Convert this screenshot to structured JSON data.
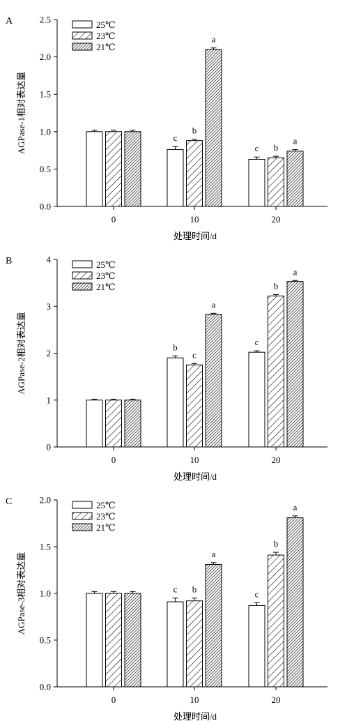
{
  "x_categories": [
    "0",
    "10",
    "20"
  ],
  "xlabel": "处理时间/d",
  "legend": [
    {
      "label": "25℃",
      "pattern": "white"
    },
    {
      "label": "23℃",
      "pattern": "sparse-hatch"
    },
    {
      "label": "21℃",
      "pattern": "dense-hatch"
    }
  ],
  "chart_data": [
    {
      "type": "bar",
      "panel_label": "A",
      "ylabel": "AGPase-1相对表达量",
      "ylim": [
        0,
        2.5
      ],
      "yticks": [
        "0.0",
        "0.5",
        "1.0",
        "1.5",
        "2.0",
        "2.5"
      ],
      "ytick_values": [
        0,
        0.5,
        1.0,
        1.5,
        2.0,
        2.5
      ],
      "categories": [
        "0",
        "10",
        "20"
      ],
      "legend_position": "top-left",
      "series": [
        {
          "name": "25℃",
          "values": [
            1.0,
            0.76,
            0.63
          ],
          "errors": [
            0.02,
            0.04,
            0.03
          ],
          "letters": [
            "",
            "c",
            "c"
          ]
        },
        {
          "name": "23℃",
          "values": [
            1.0,
            0.88,
            0.65
          ],
          "errors": [
            0.02,
            0.02,
            0.02
          ],
          "letters": [
            "",
            "b",
            "b"
          ]
        },
        {
          "name": "21℃",
          "values": [
            1.0,
            2.1,
            0.74
          ],
          "errors": [
            0.02,
            0.02,
            0.02
          ],
          "letters": [
            "",
            "a",
            "a"
          ]
        }
      ]
    },
    {
      "type": "bar",
      "panel_label": "B",
      "ylabel": "AGPase-2相对表达量",
      "ylim": [
        0,
        4
      ],
      "yticks": [
        "0",
        "1",
        "2",
        "3",
        "4"
      ],
      "ytick_values": [
        0,
        1,
        2,
        3,
        4
      ],
      "categories": [
        "0",
        "10",
        "20"
      ],
      "legend_position": "top-left",
      "series": [
        {
          "name": "25℃",
          "values": [
            1.0,
            1.9,
            2.02
          ],
          "errors": [
            0.02,
            0.04,
            0.03
          ],
          "letters": [
            "",
            "b",
            "c"
          ]
        },
        {
          "name": "23℃",
          "values": [
            1.0,
            1.75,
            3.22
          ],
          "errors": [
            0.02,
            0.03,
            0.03
          ],
          "letters": [
            "",
            "c",
            "b"
          ]
        },
        {
          "name": "21℃",
          "values": [
            1.0,
            2.83,
            3.53
          ],
          "errors": [
            0.02,
            0.02,
            0.02
          ],
          "letters": [
            "",
            "a",
            "a"
          ]
        }
      ]
    },
    {
      "type": "bar",
      "panel_label": "C",
      "ylabel": "AGPase-3相对表达量",
      "ylim": [
        0,
        2.0
      ],
      "yticks": [
        "0.0",
        "0.5",
        "1.0",
        "1.5",
        "2.0"
      ],
      "ytick_values": [
        0,
        0.5,
        1.0,
        1.5,
        2.0
      ],
      "categories": [
        "0",
        "10",
        "20"
      ],
      "legend_position": "top-left",
      "series": [
        {
          "name": "25℃",
          "values": [
            1.0,
            0.91,
            0.87
          ],
          "errors": [
            0.02,
            0.04,
            0.03
          ],
          "letters": [
            "",
            "c",
            "c"
          ]
        },
        {
          "name": "23℃",
          "values": [
            1.0,
            0.92,
            1.41
          ],
          "errors": [
            0.02,
            0.03,
            0.03
          ],
          "letters": [
            "",
            "b",
            "b"
          ]
        },
        {
          "name": "21℃",
          "values": [
            1.0,
            1.31,
            1.81
          ],
          "errors": [
            0.02,
            0.02,
            0.02
          ],
          "letters": [
            "",
            "a",
            "a"
          ]
        }
      ]
    }
  ]
}
